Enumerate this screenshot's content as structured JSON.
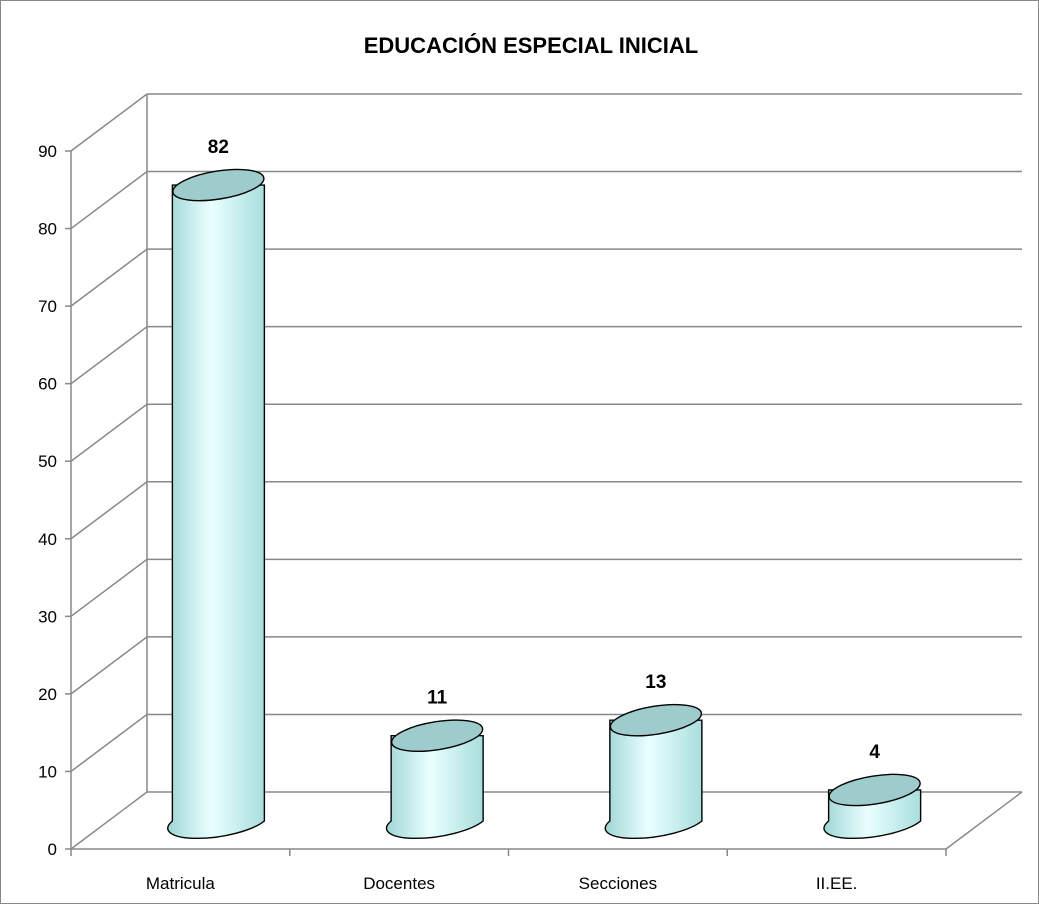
{
  "chart_data": {
    "type": "bar",
    "style": "3d-cylinder",
    "title": "EDUCACIÓN ESPECIAL INICIAL",
    "categories": [
      "Matricula",
      "Docentes",
      "Secciones",
      "II.EE."
    ],
    "values": [
      82,
      11,
      13,
      4
    ],
    "data_labels": [
      "82",
      "11",
      "13",
      "4"
    ],
    "ylim": [
      0,
      90
    ],
    "yticks": [
      "0",
      "10",
      "20",
      "30",
      "40",
      "50",
      "60",
      "70",
      "80",
      "90"
    ],
    "grid": true,
    "legend": "none",
    "xlabel": "",
    "ylabel": ""
  },
  "colors": {
    "bar_body": "#ccffff",
    "bar_top": "#9ecccc",
    "bar_outline": "#000000",
    "grid": "#888888",
    "axis": "#888888"
  }
}
